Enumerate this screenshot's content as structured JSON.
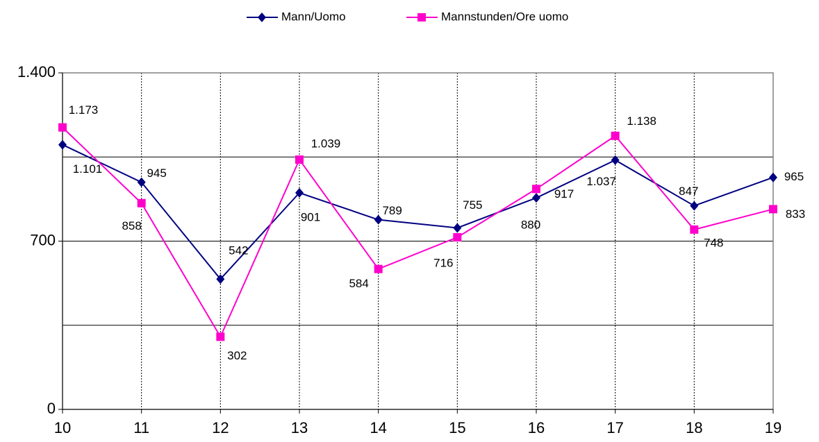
{
  "chart_data": {
    "type": "line",
    "x": [
      10,
      11,
      12,
      13,
      14,
      15,
      16,
      17,
      18,
      19
    ],
    "xlim": [
      10,
      19
    ],
    "xticks": [
      10,
      11,
      12,
      13,
      14,
      15,
      16,
      17,
      18,
      19
    ],
    "ylim": [
      0,
      1400
    ],
    "yticks": [
      0,
      700,
      {
        "value": 1400,
        "label": "1.400"
      }
    ],
    "minor_yticks": [
      350,
      1050
    ],
    "grid": true,
    "legend": "top",
    "series": [
      {
        "name": "Mann/Uomo",
        "color": "#000080",
        "marker": "diamond",
        "values": [
          1101,
          945,
          542,
          901,
          789,
          755,
          880,
          1037,
          847,
          965
        ],
        "value_labels": [
          "1.101",
          "945",
          "542",
          "901",
          "789",
          "755",
          "880",
          "1.037",
          "847",
          "965"
        ]
      },
      {
        "name": "Mannstunden/Ore uomo",
        "color": "#ff00cc",
        "marker": "square",
        "values": [
          1173,
          858,
          302,
          1039,
          584,
          716,
          917,
          1138,
          748,
          833
        ],
        "value_labels": [
          "1.173",
          "858",
          "302",
          "1.039",
          "584",
          "716",
          "917",
          "1.138",
          "748",
          "833"
        ]
      }
    ]
  }
}
